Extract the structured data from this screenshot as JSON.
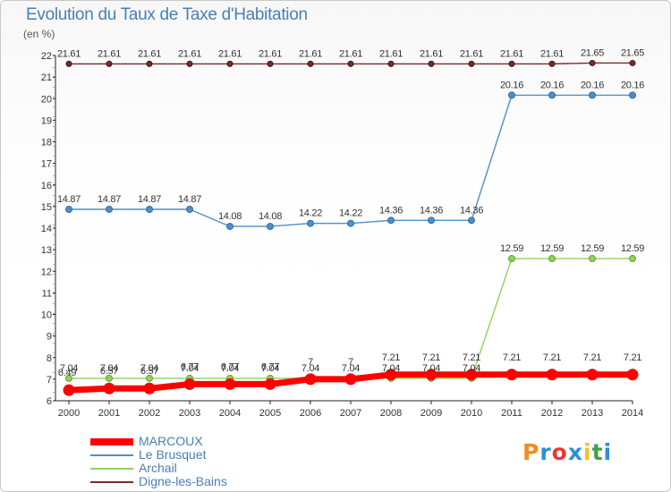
{
  "header": {
    "title": "Evolution du Taux de Taxe d'Habitation",
    "subtitle": "(en %)"
  },
  "logo": {
    "text": "Proxiti",
    "colors": [
      "#f28c1e",
      "#2b8fd6",
      "#e53935",
      "#2b8fd6",
      "#f2c12e",
      "#43a047",
      "#2b8fd6"
    ]
  },
  "chart_data": {
    "type": "line",
    "title": "Evolution du Taux de Taxe d'Habitation",
    "ylabel": "(en %)",
    "xlabel": "",
    "ylim": [
      6,
      22
    ],
    "yticks": [
      6,
      7,
      8,
      9,
      10,
      11,
      12,
      13,
      14,
      15,
      16,
      17,
      18,
      19,
      20,
      21,
      22
    ],
    "categories": [
      "2000",
      "2001",
      "2002",
      "2003",
      "2004",
      "2005",
      "2006",
      "2007",
      "2008",
      "2009",
      "2010",
      "2011",
      "2012",
      "2013",
      "2014"
    ],
    "grid": false,
    "legend_position": "bottom-left",
    "series": [
      {
        "name": "Digne-les-Bains",
        "color": "#7b2a2a",
        "values": [
          21.61,
          21.61,
          21.61,
          21.61,
          21.61,
          21.61,
          21.61,
          21.61,
          21.61,
          21.61,
          21.61,
          21.61,
          21.61,
          21.65,
          21.65
        ],
        "labels": [
          "21.61",
          "21.61",
          "21.61",
          "21.61",
          "21.61",
          "21.61",
          "21.61",
          "21.61",
          "21.61",
          "21.61",
          "21.61",
          "21.61",
          "21.61",
          "21.65",
          "21.65"
        ]
      },
      {
        "name": "Le Brusquet",
        "color": "#4f8fc6",
        "values": [
          14.87,
          14.87,
          14.87,
          14.87,
          14.08,
          14.08,
          14.22,
          14.22,
          14.36,
          14.36,
          14.36,
          20.16,
          20.16,
          20.16,
          20.16
        ],
        "labels": [
          "14.87",
          "14.87",
          "14.87",
          "14.87",
          "14.08",
          "14.08",
          "14.22",
          "14.22",
          "14.36",
          "14.36",
          "14.36",
          "20.16",
          "20.16",
          "20.16",
          "20.16"
        ]
      },
      {
        "name": "Archail",
        "color": "#8fd35a",
        "values": [
          7.04,
          7.04,
          7.04,
          7.04,
          7.04,
          7.04,
          7.04,
          7.04,
          7.04,
          7.04,
          7.04,
          12.59,
          12.59,
          12.59,
          12.59
        ],
        "labels": [
          "7.04",
          "7.04",
          "7.04",
          "7.04",
          "7.04",
          "7.04",
          "7.04",
          "7.04",
          "7.04",
          "7.04",
          "7.04",
          "12.59",
          "12.59",
          "12.59",
          "12.59"
        ]
      },
      {
        "name": "MARCOUX",
        "color": "#ff0000",
        "values": [
          6.49,
          6.57,
          6.57,
          6.77,
          6.77,
          6.77,
          7,
          7,
          7.21,
          7.21,
          7.21,
          7.21,
          7.21,
          7.21,
          7.21
        ],
        "labels": [
          "6.49",
          "6.57",
          "6.57",
          "6.77",
          "6.77",
          "6.77",
          "7",
          "7",
          "7.21",
          "7.21",
          "7.21",
          "7.21",
          "7.21",
          "7.21",
          "7.21"
        ]
      }
    ]
  }
}
